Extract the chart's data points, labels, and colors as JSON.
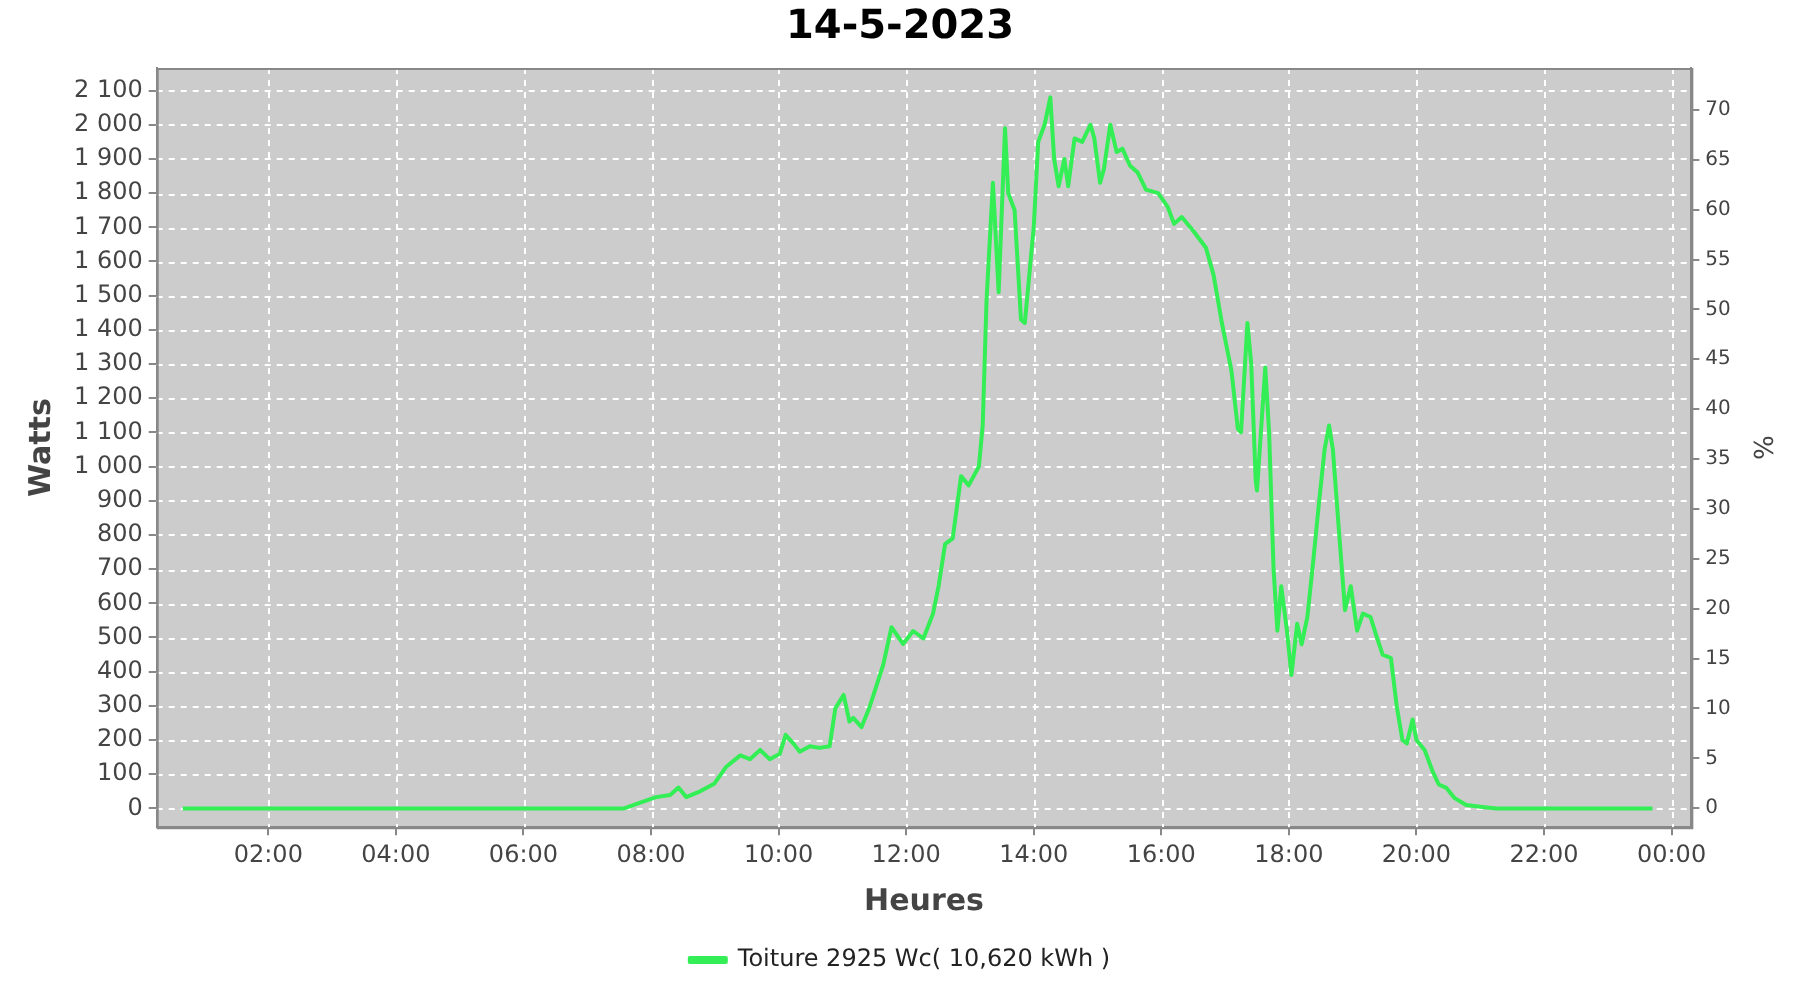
{
  "chart_data": {
    "type": "line",
    "title": "14-5-2023",
    "xlabel": "Heures",
    "ylabel": "Watts",
    "y2label": "%",
    "xlim": [
      0.25,
      24.31
    ],
    "xticks": [
      {
        "value": 2,
        "label": "02:00"
      },
      {
        "value": 4,
        "label": "04:00"
      },
      {
        "value": 6,
        "label": "06:00"
      },
      {
        "value": 8,
        "label": "08:00"
      },
      {
        "value": 10,
        "label": "10:00"
      },
      {
        "value": 12,
        "label": "12:00"
      },
      {
        "value": 14,
        "label": "14:00"
      },
      {
        "value": 16,
        "label": "16:00"
      },
      {
        "value": 18,
        "label": "18:00"
      },
      {
        "value": 20,
        "label": "20:00"
      },
      {
        "value": 22,
        "label": "22:00"
      },
      {
        "value": 24,
        "label": "00:00"
      }
    ],
    "ylim": [
      -55,
      2166
    ],
    "yticks": [
      0,
      100,
      200,
      300,
      400,
      500,
      600,
      700,
      800,
      900,
      {
        "value": 1000,
        "label": "1 000"
      },
      {
        "value": 1100,
        "label": "1 100"
      },
      {
        "value": 1200,
        "label": "1 200"
      },
      {
        "value": 1300,
        "label": "1 300"
      },
      {
        "value": 1400,
        "label": "1 400"
      },
      {
        "value": 1500,
        "label": "1 500"
      },
      {
        "value": 1600,
        "label": "1 600"
      },
      {
        "value": 1700,
        "label": "1 700"
      },
      {
        "value": 1800,
        "label": "1 800"
      },
      {
        "value": 1900,
        "label": "1 900"
      },
      {
        "value": 2000,
        "label": "2 000"
      },
      {
        "value": 2100,
        "label": "2 100"
      }
    ],
    "y2lim": [
      -1.9,
      74.2
    ],
    "y2ticks": [
      0,
      5,
      10,
      15,
      20,
      25,
      30,
      35,
      40,
      45,
      50,
      55,
      60,
      65,
      70
    ],
    "grid": true,
    "legend": "bottom",
    "marker": "none",
    "line_style": "solid",
    "series": [
      {
        "name": "Toiture 2925 Wc( 10,620 kWh )",
        "color": "#33ee55",
        "x": [
          0.66,
          3,
          5,
          6.59,
          7.58,
          7.83,
          8.08,
          8.3,
          8.43,
          8.55,
          8.77,
          8.99,
          9.18,
          9.4,
          9.55,
          9.71,
          9.86,
          10.02,
          10.11,
          10.24,
          10.33,
          10.49,
          10.64,
          10.8,
          10.89,
          11.02,
          11.11,
          11.17,
          11.3,
          11.42,
          11.64,
          11.77,
          11.95,
          12.11,
          12.27,
          12.42,
          12.51,
          12.61,
          12.73,
          12.86,
          12.98,
          13.14,
          13.2,
          13.26,
          13.36,
          13.45,
          13.55,
          13.6,
          13.7,
          13.8,
          13.86,
          14.0,
          14.07,
          14.17,
          14.26,
          14.32,
          14.39,
          14.48,
          14.54,
          14.64,
          14.76,
          14.89,
          14.95,
          15.04,
          15.1,
          15.2,
          15.3,
          15.39,
          15.51,
          15.63,
          15.76,
          15.95,
          16.1,
          16.2,
          16.32,
          16.5,
          16.7,
          16.82,
          16.95,
          17.1,
          17.2,
          17.25,
          17.35,
          17.41,
          17.48,
          17.5,
          17.63,
          17.69,
          17.76,
          17.82,
          17.88,
          17.97,
          18.04,
          18.13,
          18.2,
          18.29,
          18.38,
          18.47,
          18.56,
          18.63,
          18.69,
          18.79,
          18.88,
          18.97,
          19.07,
          19.16,
          19.28,
          19.38,
          19.47,
          19.6,
          19.69,
          19.78,
          19.85,
          19.94,
          20.0,
          20.13,
          20.25,
          20.35,
          20.47,
          20.6,
          20.78,
          21.0,
          21.25,
          22.5,
          23.7
        ],
        "values": [
          0,
          0,
          0,
          0,
          0,
          17,
          33,
          39,
          61,
          33,
          50,
          72,
          122,
          155,
          144,
          171,
          144,
          160,
          215,
          188,
          166,
          182,
          177,
          182,
          293,
          332,
          254,
          265,
          238,
          293,
          420,
          530,
          481,
          519,
          497,
          569,
          652,
          773,
          790,
          972,
          945,
          1000,
          1121,
          1486,
          1830,
          1510,
          1990,
          1800,
          1750,
          1430,
          1420,
          1700,
          1950,
          2000,
          2080,
          1900,
          1820,
          1900,
          1820,
          1960,
          1950,
          2000,
          1960,
          1830,
          1870,
          2000,
          1920,
          1930,
          1880,
          1860,
          1810,
          1800,
          1760,
          1710,
          1730,
          1690,
          1640,
          1560,
          1420,
          1280,
          1110,
          1100,
          1420,
          1300,
          960,
          930,
          1290,
          1100,
          700,
          520,
          650,
          520,
          390,
          540,
          480,
          560,
          720,
          890,
          1050,
          1120,
          1050,
          800,
          580,
          650,
          520,
          570,
          560,
          500,
          450,
          440,
          300,
          200,
          190,
          260,
          200,
          170,
          110,
          70,
          60,
          30,
          10,
          5,
          0,
          0,
          0
        ]
      }
    ]
  }
}
